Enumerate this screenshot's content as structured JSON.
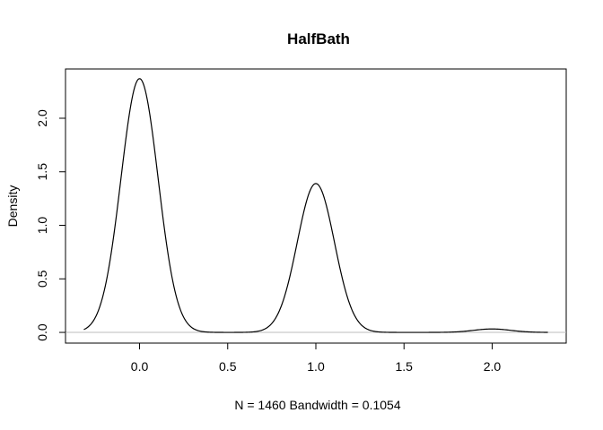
{
  "chart_data": {
    "type": "line",
    "title": "HalfBath",
    "xlabel": "N = 1460   Bandwidth = 0.1054",
    "ylabel": "Density",
    "xlim": [
      -0.42,
      2.42
    ],
    "ylim": [
      -0.1,
      2.46
    ],
    "x_ticks": [
      0.0,
      0.5,
      1.0,
      1.5,
      2.0
    ],
    "x_tick_labels": [
      "0.0",
      "0.5",
      "1.0",
      "1.5",
      "2.0"
    ],
    "y_ticks": [
      0.0,
      0.5,
      1.0,
      1.5,
      2.0
    ],
    "y_tick_labels": [
      "0.0",
      "0.5",
      "1.0",
      "1.5",
      "2.0"
    ],
    "grid": false,
    "zero_line": true,
    "density": {
      "bandwidth": 0.1054,
      "n": 1460,
      "x_range": [
        -0.316,
        2.316
      ],
      "components": [
        {
          "center": 0.0,
          "peak": 2.37
        },
        {
          "center": 1.0,
          "peak": 1.39
        },
        {
          "center": 2.0,
          "peak": 0.032
        }
      ]
    }
  }
}
